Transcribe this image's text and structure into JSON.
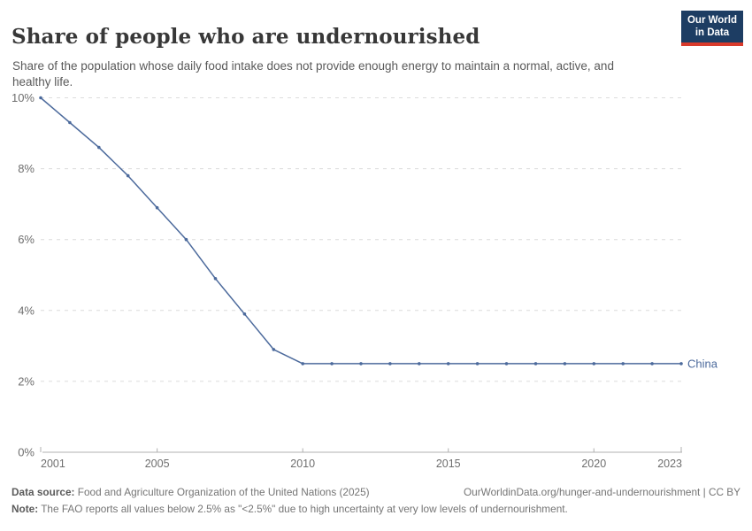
{
  "header": {
    "title": "Share of people who are undernourished",
    "subtitle": "Share of the population whose daily food intake does not provide enough energy to maintain a normal, active, and healthy life.",
    "logo": {
      "line1": "Our World",
      "line2": "in Data",
      "bg_color": "#1d3d63",
      "accent_color": "#d93a2b"
    }
  },
  "chart_data": {
    "type": "line",
    "title": "Share of people who are undernourished",
    "xlabel": "",
    "ylabel": "",
    "xlim": [
      2001,
      2023
    ],
    "ylim": [
      0,
      10
    ],
    "grid": "horizontal-dashed",
    "legend_position": "end-of-line",
    "x_ticks": [
      2001,
      2005,
      2010,
      2015,
      2020,
      2023
    ],
    "y_ticks": [
      0,
      2,
      4,
      6,
      8,
      10
    ],
    "y_tick_suffix": "%",
    "colors": {
      "grid": "#dcdcdc",
      "axis": "#b0b0b0",
      "tick_label": "#6e6e6e"
    },
    "series": [
      {
        "name": "China",
        "color": "#4c6a9c",
        "x": [
          2001,
          2002,
          2003,
          2004,
          2005,
          2006,
          2007,
          2008,
          2009,
          2010,
          2011,
          2012,
          2013,
          2014,
          2015,
          2016,
          2017,
          2018,
          2019,
          2020,
          2021,
          2022,
          2023
        ],
        "values": [
          10,
          9.3,
          8.6,
          7.8,
          6.9,
          6.0,
          4.9,
          3.9,
          2.9,
          2.5,
          2.5,
          2.5,
          2.5,
          2.5,
          2.5,
          2.5,
          2.5,
          2.5,
          2.5,
          2.5,
          2.5,
          2.5,
          2.5
        ]
      }
    ]
  },
  "footer": {
    "data_source_label": "Data source:",
    "data_source_text": " Food and Agriculture Organization of the United Nations (2025)",
    "link_text": "OurWorldinData.org/hunger-and-undernourishment | CC BY",
    "note_label": "Note:",
    "note_text": " The FAO reports all values below 2.5% as \"<2.5%\" due to high uncertainty at very low levels of undernourishment."
  }
}
